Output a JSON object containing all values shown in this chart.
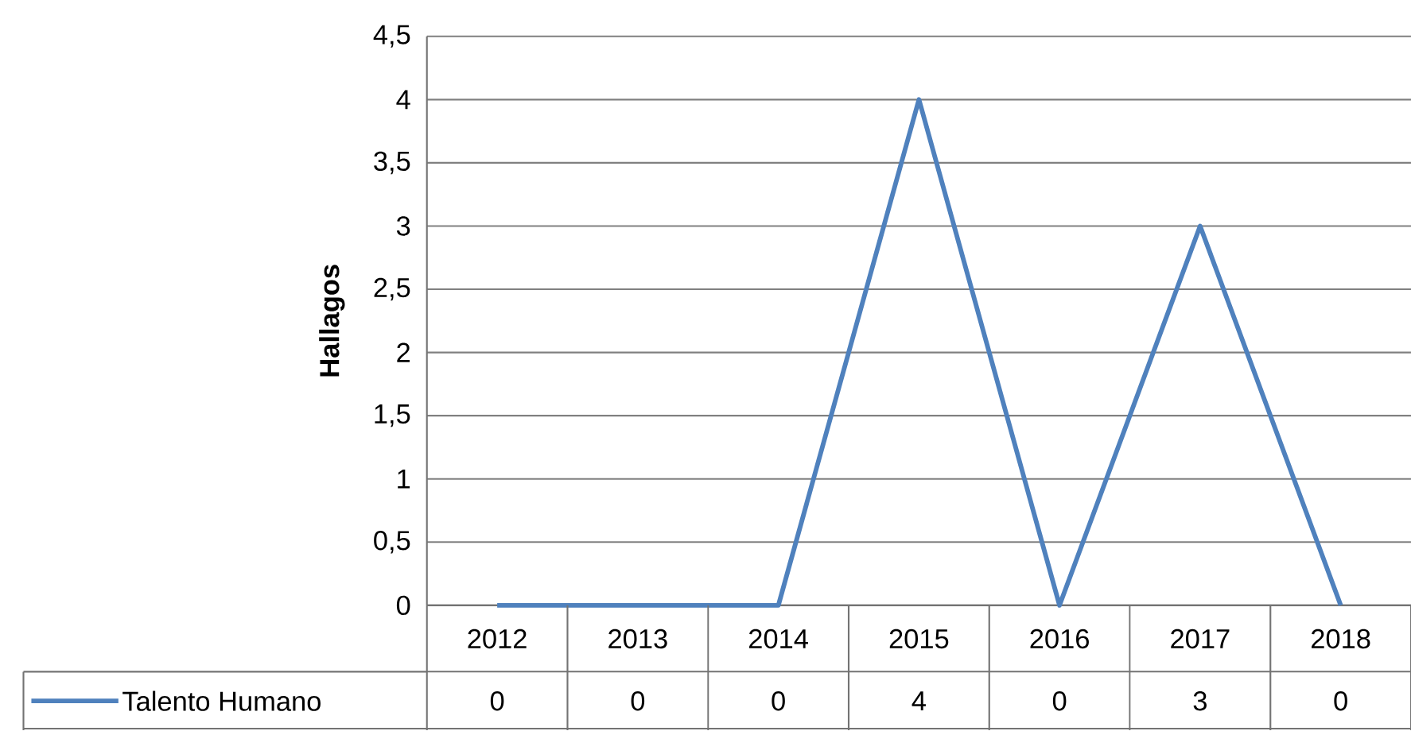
{
  "chart_data": {
    "type": "line",
    "ylabel": "**Hallagos**",
    "categories": [
      "2012",
      "2013",
      "2014",
      "2015",
      "2016",
      "2017",
      "2018"
    ],
    "series": [
      {
        "name": "Talento Humano",
        "color": "#4f81bd",
        "values": [
          0,
          0,
          0,
          4,
          0,
          3,
          0
        ]
      }
    ],
    "ylim": [
      0,
      4.5
    ],
    "yticks": [
      {
        "value": 0,
        "label": "0"
      },
      {
        "value": 0.5,
        "label": "0,5"
      },
      {
        "value": 1,
        "label": "1"
      },
      {
        "value": 1.5,
        "label": "1,5"
      },
      {
        "value": 2,
        "label": "2"
      },
      {
        "value": 2.5,
        "label": "2,5"
      },
      {
        "value": 3,
        "label": "3"
      },
      {
        "value": 3.5,
        "label": "3,5"
      },
      {
        "value": 4,
        "label": "4"
      },
      {
        "value": 4.5,
        "label": "4,5"
      }
    ],
    "grid": "y",
    "legend": "bottom left",
    "data_labels": true,
    "marker": "none",
    "line_style": "solid"
  }
}
